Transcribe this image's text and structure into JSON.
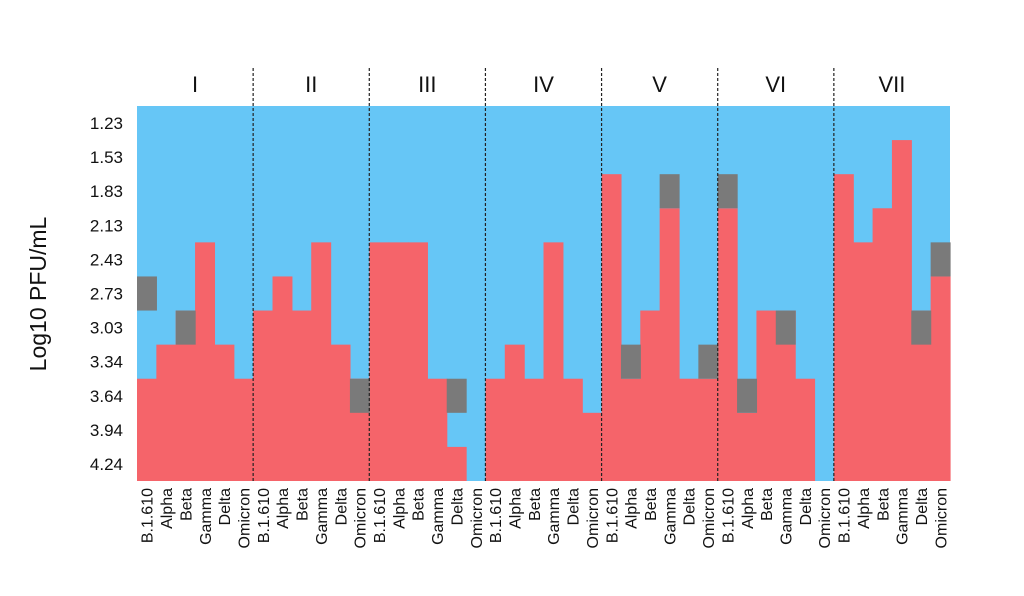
{
  "chart_data": {
    "type": "heatmap",
    "title": "",
    "ylabel": "Log10 PFU/mL",
    "xlabel": "",
    "y_tick_labels": [
      "1.23",
      "1.53",
      "1.83",
      "2.13",
      "2.43",
      "2.73",
      "3.03",
      "3.34",
      "3.64",
      "3.94",
      "4.24"
    ],
    "categories": [
      "B.1.610",
      "Alpha",
      "Beta",
      "Gamma",
      "Delta",
      "Omicron"
    ],
    "groups": [
      "I",
      "II",
      "III",
      "IV",
      "V",
      "VI",
      "VII"
    ],
    "row_count": 11,
    "legend": "none",
    "grid": false,
    "colors": {
      "background": "#66c6f6",
      "fill": "#f5646a",
      "intermediate": "#7a7a7a",
      "separator": "#222222"
    },
    "fill_levels": [
      [
        3,
        4,
        5,
        7,
        4,
        3
      ],
      [
        5,
        6,
        5,
        7,
        4,
        3
      ],
      [
        7,
        7,
        7,
        3,
        1,
        0
      ],
      [
        3,
        4,
        3,
        7,
        3,
        2
      ],
      [
        9,
        3,
        5,
        8,
        3,
        3
      ],
      [
        8,
        2,
        5,
        5,
        3,
        0
      ],
      [
        9,
        7,
        8,
        10,
        5,
        6
      ]
    ],
    "gray_cells": [
      [
        0,
        0,
        6
      ],
      [
        0,
        2,
        5
      ],
      [
        1,
        5,
        3
      ],
      [
        2,
        4,
        3
      ],
      [
        4,
        1,
        4
      ],
      [
        4,
        3,
        9
      ],
      [
        4,
        5,
        4
      ],
      [
        5,
        0,
        9
      ],
      [
        5,
        1,
        3
      ],
      [
        5,
        3,
        5
      ],
      [
        6,
        4,
        5
      ],
      [
        6,
        5,
        7
      ]
    ]
  }
}
